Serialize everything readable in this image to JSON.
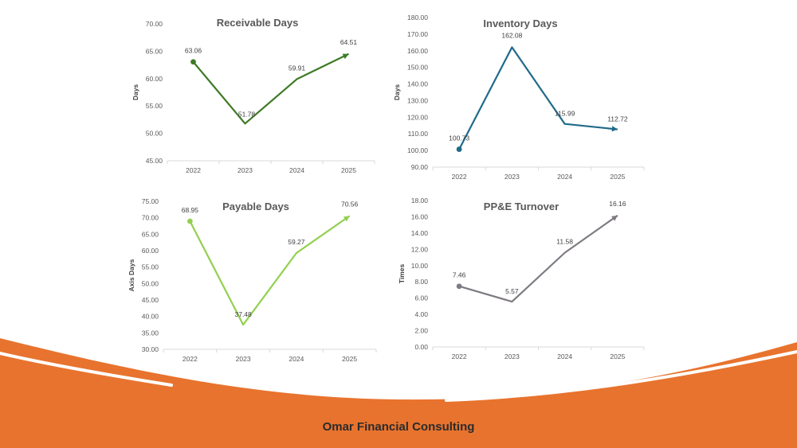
{
  "footer": {
    "company": "Omar Financial Consulting"
  },
  "colors": {
    "orange": "#E8732E",
    "white": "#ffffff",
    "text": "#595959",
    "axis": "#d9d9d9"
  },
  "chart_data": [
    {
      "type": "line",
      "title": "Receivable Days",
      "ylabel": "Days",
      "xlabel": "",
      "categories": [
        "2022",
        "2023",
        "2024",
        "2025"
      ],
      "series": [
        {
          "name": "Receivable Days",
          "values": [
            63.06,
            51.78,
            59.91,
            64.51
          ],
          "color": "#3E7A26"
        }
      ],
      "ylim": [
        45,
        70
      ],
      "ytick_step": 5,
      "tick_labels": [
        "45.00",
        "50.00",
        "55.00",
        "60.00",
        "65.00",
        "70.00"
      ],
      "data_labels": [
        "63.06",
        "51.78",
        "59.91",
        "64.51"
      ],
      "grid": false
    },
    {
      "type": "line",
      "title": "Inventory Days",
      "ylabel": "Days",
      "xlabel": "",
      "categories": [
        "2022",
        "2023",
        "2024",
        "2025"
      ],
      "series": [
        {
          "name": "Inventory Days",
          "values": [
            100.73,
            162.08,
            115.99,
            112.72
          ],
          "color": "#1F6A8A"
        }
      ],
      "ylim": [
        90,
        180
      ],
      "ytick_step": 10,
      "tick_labels": [
        "90.00",
        "100.00",
        "110.00",
        "120.00",
        "130.00",
        "140.00",
        "150.00",
        "160.00",
        "170.00",
        "180.00"
      ],
      "data_labels": [
        "100.73",
        "162.08",
        "115.99",
        "112.72"
      ],
      "grid": false
    },
    {
      "type": "line",
      "title": "Payable Days",
      "ylabel": "Axis Days",
      "xlabel": "",
      "categories": [
        "2022",
        "2023",
        "2024",
        "2025"
      ],
      "series": [
        {
          "name": "Payable Days",
          "values": [
            68.95,
            37.48,
            59.27,
            70.56
          ],
          "color": "#92D050"
        }
      ],
      "ylim": [
        30,
        75
      ],
      "ytick_step": 5,
      "tick_labels": [
        "30.00",
        "35.00",
        "40.00",
        "45.00",
        "50.00",
        "55.00",
        "60.00",
        "65.00",
        "70.00",
        "75.00"
      ],
      "data_labels": [
        "68.95",
        "37.48",
        "59.27",
        "70.56"
      ],
      "grid": false
    },
    {
      "type": "line",
      "title": "PP&E Turnover",
      "ylabel": "Times",
      "xlabel": "",
      "categories": [
        "2022",
        "2023",
        "2024",
        "2025"
      ],
      "series": [
        {
          "name": "PP&E Turnover",
          "values": [
            7.46,
            5.57,
            11.58,
            16.16
          ],
          "color": "#7F7A82"
        }
      ],
      "ylim": [
        0,
        18
      ],
      "ytick_step": 2,
      "tick_labels": [
        "0.00",
        "2.00",
        "4.00",
        "6.00",
        "8.00",
        "10.00",
        "12.00",
        "14.00",
        "16.00",
        "18.00"
      ],
      "data_labels": [
        "7.46",
        "5.57",
        "11.58",
        "16.16"
      ],
      "grid": false
    }
  ]
}
